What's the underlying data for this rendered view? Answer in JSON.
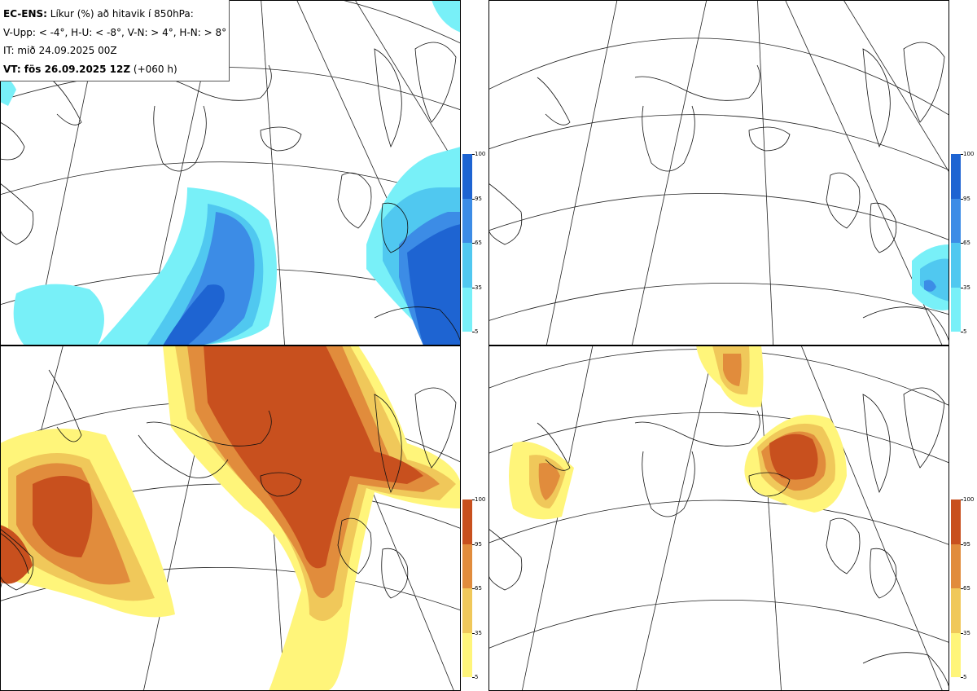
{
  "header": {
    "model": "EC-ENS:",
    "title_rest": "Líkur (%) að hitavik í 850hPa:",
    "thresholds": "V-Upp: < -4°, H-U: < -8°, V-N: > 4°, H-N: > 8°",
    "init_time": "IT: mið 24.09.2025 00Z",
    "valid_prefix": "VT: fös 26.09.2025 12Z",
    "valid_lead": "(+060 h)"
  },
  "panels": [
    {
      "id": "tl",
      "name": "V-Upp",
      "palette": "cold"
    },
    {
      "id": "tr",
      "name": "H-U",
      "palette": "cold"
    },
    {
      "id": "bl",
      "name": "V-N",
      "palette": "warm"
    },
    {
      "id": "br",
      "name": "H-N",
      "palette": "warm"
    }
  ],
  "colorbar": {
    "ticks": [
      "100",
      "95",
      "65",
      "35",
      "5"
    ],
    "cold_colors": [
      "#1e64d2",
      "#3c8ce6",
      "#50c8f0",
      "#78f0f8"
    ],
    "warm_colors": [
      "#c8501e",
      "#e18c3c",
      "#f0c85a",
      "#fff57a"
    ]
  }
}
